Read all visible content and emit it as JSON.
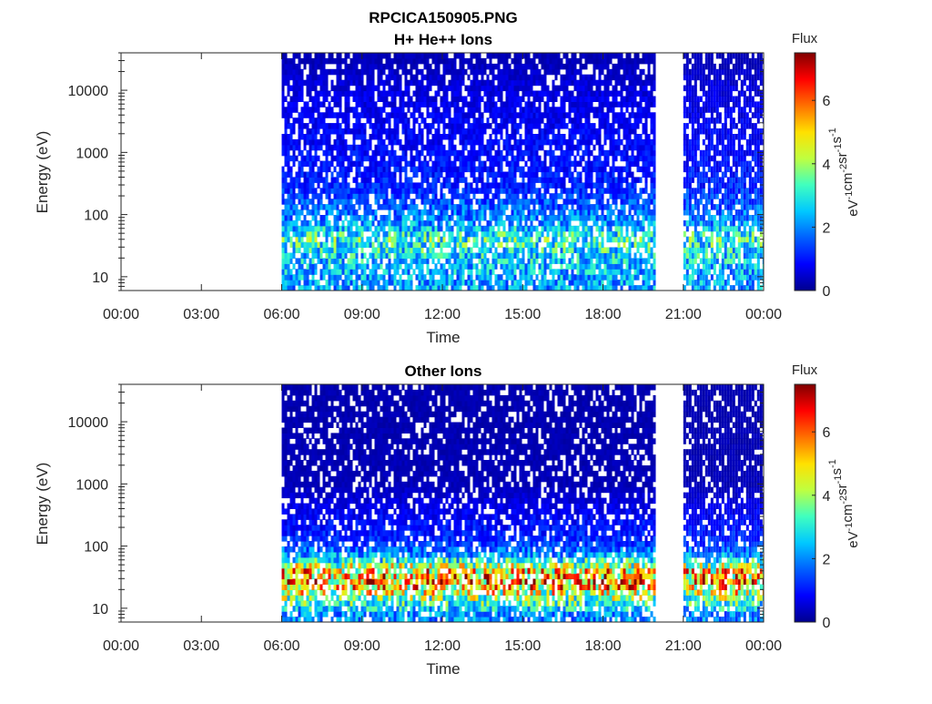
{
  "figure_title": "RPCICA150905.PNG",
  "colors": {
    "axis": "#262626",
    "background": "#ffffff",
    "colormap": [
      "#00008f",
      "#0000ff",
      "#0060ff",
      "#00c8ff",
      "#40ffbf",
      "#bfff40",
      "#ffe000",
      "#ff7000",
      "#ff0000",
      "#800000"
    ]
  },
  "chart_data": [
    {
      "type": "heatmap",
      "title": "H+ He++ Ions",
      "xlabel": "Time",
      "ylabel": "Energy (eV)",
      "x_ticks": [
        "00:00",
        "03:00",
        "06:00",
        "09:00",
        "12:00",
        "15:00",
        "18:00",
        "21:00",
        "00:00"
      ],
      "x_tick_hours": [
        0,
        3,
        6,
        9,
        12,
        15,
        18,
        21,
        24
      ],
      "xlim_hours": [
        0,
        24
      ],
      "y_scale": "log",
      "ylim": [
        6,
        40000
      ],
      "y_ticks": [
        "10",
        "100",
        "1000",
        "10000"
      ],
      "y_tick_values": [
        10,
        100,
        1000,
        10000
      ],
      "colorbar": {
        "title": "Flux",
        "label_parts": [
          "eV",
          "-1",
          "cm",
          "-2",
          "sr",
          "-1",
          "s",
          "-1"
        ],
        "range": [
          0,
          7.5
        ],
        "ticks": [
          "0",
          "2",
          "4",
          "6"
        ],
        "tick_values": [
          0,
          2,
          4,
          6
        ]
      },
      "data_intervals_hours": [
        [
          6.0,
          19.95
        ],
        [
          21.0,
          24.0
        ]
      ],
      "approx_flux_profile": [
        {
          "energy": 8,
          "flux": 2.2
        },
        {
          "energy": 20,
          "flux": 2.6
        },
        {
          "energy": 40,
          "flux": 3.2
        },
        {
          "energy": 80,
          "flux": 2.0
        },
        {
          "energy": 300,
          "flux": 1.1
        },
        {
          "energy": 2000,
          "flux": 0.8
        },
        {
          "energy": 10000,
          "flux": 0.6
        },
        {
          "energy": 30000,
          "flux": 0.3
        }
      ]
    },
    {
      "type": "heatmap",
      "title": "Other Ions",
      "xlabel": "Time",
      "ylabel": "Energy (eV)",
      "x_ticks": [
        "00:00",
        "03:00",
        "06:00",
        "09:00",
        "12:00",
        "15:00",
        "18:00",
        "21:00",
        "00:00"
      ],
      "x_tick_hours": [
        0,
        3,
        6,
        9,
        12,
        15,
        18,
        21,
        24
      ],
      "xlim_hours": [
        0,
        24
      ],
      "y_scale": "log",
      "ylim": [
        6,
        40000
      ],
      "y_ticks": [
        "10",
        "100",
        "1000",
        "10000"
      ],
      "y_tick_values": [
        10,
        100,
        1000,
        10000
      ],
      "colorbar": {
        "title": "Flux",
        "label_parts": [
          "eV",
          "-1",
          "cm",
          "-2",
          "sr",
          "-1",
          "s",
          "-1"
        ],
        "range": [
          0,
          7.5
        ],
        "ticks": [
          "0",
          "2",
          "4",
          "6"
        ],
        "tick_values": [
          0,
          2,
          4,
          6
        ]
      },
      "data_intervals_hours": [
        [
          6.0,
          19.95
        ],
        [
          21.0,
          24.0
        ]
      ],
      "approx_flux_profile": [
        {
          "energy": 8,
          "flux": 2.0
        },
        {
          "energy": 15,
          "flux": 3.8
        },
        {
          "energy": 25,
          "flux": 5.6
        },
        {
          "energy": 40,
          "flux": 5.0
        },
        {
          "energy": 70,
          "flux": 2.2
        },
        {
          "energy": 120,
          "flux": 1.2
        },
        {
          "energy": 1000,
          "flux": 0.3
        },
        {
          "energy": 10000,
          "flux": 0.25
        }
      ]
    }
  ]
}
